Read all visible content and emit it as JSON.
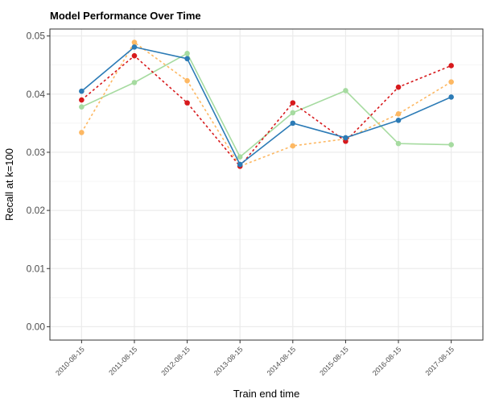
{
  "chart_data": {
    "type": "line",
    "title": "Model Performance Over Time",
    "xlabel": "Train end time",
    "ylabel": "Recall at k=100",
    "categories": [
      "2010-08-15",
      "2011-08-15",
      "2012-08-15",
      "2013-08-15",
      "2014-08-15",
      "2015-08-15",
      "2016-08-15",
      "2017-08-15"
    ],
    "ylim": [
      -0.0023,
      0.0512
    ],
    "yticks": [
      0.0,
      0.01,
      0.02,
      0.03,
      0.04,
      0.05
    ],
    "ytick_labels": [
      "0.00",
      "0.01",
      "0.02",
      "0.03",
      "0.04",
      "0.05"
    ],
    "grid": true,
    "legend": "none",
    "series": [
      {
        "values": [
          0.0378,
          0.042,
          0.047,
          0.0292,
          0.0368,
          0.0406,
          0.0315,
          0.0313
        ],
        "color": "#a6dba0",
        "dash": "solid"
      },
      {
        "values": [
          0.0334,
          0.0489,
          0.0423,
          0.0276,
          0.0311,
          0.0323,
          0.0366,
          0.0421
        ],
        "color": "#fdb863",
        "dash": "dotted"
      },
      {
        "values": [
          0.039,
          0.0466,
          0.0385,
          0.0276,
          0.0385,
          0.0319,
          0.0412,
          0.0449
        ],
        "color": "#d7191c",
        "dash": "dotted"
      },
      {
        "values": [
          0.0405,
          0.0481,
          0.0461,
          0.0279,
          0.035,
          0.0325,
          0.0355,
          0.0395
        ],
        "color": "#2c7bb6",
        "dash": "solid"
      }
    ]
  }
}
